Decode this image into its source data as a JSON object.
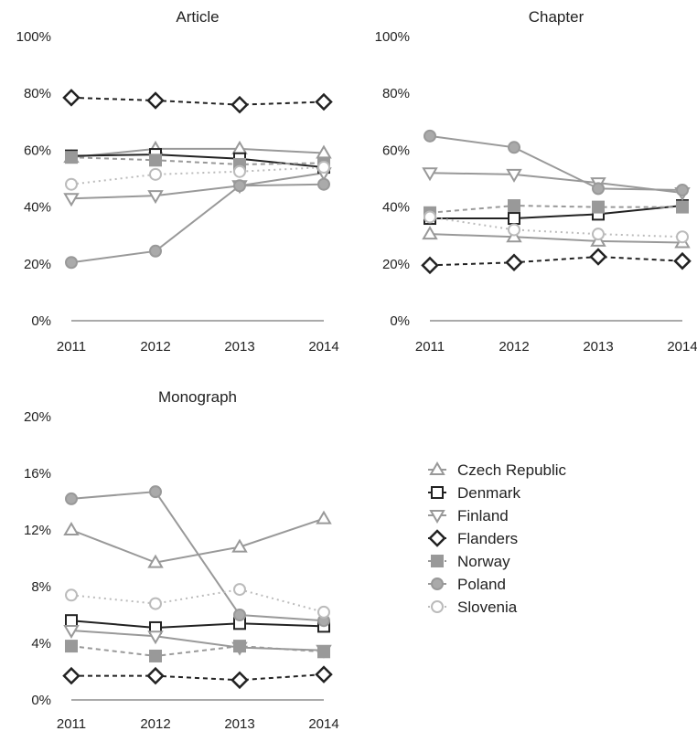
{
  "chart_data": [
    {
      "type": "line",
      "title": "Article",
      "categories": [
        "2011",
        "2012",
        "2013",
        "2014"
      ],
      "ylim": [
        0,
        100
      ],
      "yticks": [
        "0%",
        "20%",
        "40%",
        "60%",
        "80%",
        "100%"
      ],
      "series": [
        {
          "name": "Czech Republic",
          "values": [
            57.5,
            60.5,
            60.5,
            59.0
          ]
        },
        {
          "name": "Denmark",
          "values": [
            58.0,
            58.5,
            57.0,
            54.0
          ]
        },
        {
          "name": "Finland",
          "values": [
            43.0,
            44.0,
            47.5,
            52.0
          ]
        },
        {
          "name": "Flanders",
          "values": [
            78.5,
            77.5,
            76.0,
            77.0
          ]
        },
        {
          "name": "Norway",
          "values": [
            57.5,
            56.5,
            55.0,
            55.5
          ]
        },
        {
          "name": "Poland",
          "values": [
            20.5,
            24.5,
            47.5,
            48.0
          ]
        },
        {
          "name": "Slovenia",
          "values": [
            48.0,
            51.5,
            52.5,
            54.0
          ]
        }
      ]
    },
    {
      "type": "line",
      "title": "Chapter",
      "categories": [
        "2011",
        "2012",
        "2013",
        "2014"
      ],
      "ylim": [
        0,
        100
      ],
      "yticks": [
        "0%",
        "20%",
        "40%",
        "60%",
        "80%",
        "100%"
      ],
      "series": [
        {
          "name": "Czech Republic",
          "values": [
            30.5,
            29.5,
            28.0,
            27.5
          ]
        },
        {
          "name": "Denmark",
          "values": [
            36.0,
            36.0,
            37.5,
            40.5
          ]
        },
        {
          "name": "Finland",
          "values": [
            52.0,
            51.5,
            48.5,
            45.0
          ]
        },
        {
          "name": "Flanders",
          "values": [
            19.5,
            20.5,
            22.5,
            21.0
          ]
        },
        {
          "name": "Norway",
          "values": [
            38.0,
            40.5,
            40.0,
            40.0
          ]
        },
        {
          "name": "Poland",
          "values": [
            65.0,
            61.0,
            46.5,
            46.0
          ]
        },
        {
          "name": "Slovenia",
          "values": [
            36.5,
            32.0,
            30.5,
            29.5
          ]
        }
      ]
    },
    {
      "type": "line",
      "title": "Monograph",
      "categories": [
        "2011",
        "2012",
        "2013",
        "2014"
      ],
      "ylim": [
        0,
        20
      ],
      "yticks": [
        "0%",
        "4%",
        "8%",
        "12%",
        "16%",
        "20%"
      ],
      "series": [
        {
          "name": "Czech Republic",
          "values": [
            12.0,
            9.7,
            10.8,
            12.8
          ]
        },
        {
          "name": "Denmark",
          "values": [
            5.6,
            5.1,
            5.4,
            5.2
          ]
        },
        {
          "name": "Finland",
          "values": [
            4.9,
            4.5,
            3.7,
            3.5
          ]
        },
        {
          "name": "Flanders",
          "values": [
            1.7,
            1.7,
            1.4,
            1.8
          ]
        },
        {
          "name": "Norway",
          "values": [
            3.8,
            3.1,
            3.8,
            3.4
          ]
        },
        {
          "name": "Poland",
          "values": [
            14.2,
            14.7,
            6.0,
            5.6
          ]
        },
        {
          "name": "Slovenia",
          "values": [
            7.4,
            6.8,
            7.8,
            6.2
          ]
        }
      ]
    }
  ],
  "styles": {
    "Czech Republic": {
      "color": "#999999",
      "dash": "",
      "marker": "triangle-up",
      "fill": "#ffffff"
    },
    "Denmark": {
      "color": "#222222",
      "dash": "",
      "marker": "square",
      "fill": "#ffffff"
    },
    "Finland": {
      "color": "#999999",
      "dash": "",
      "marker": "triangle-down",
      "fill": "#ffffff"
    },
    "Flanders": {
      "color": "#222222",
      "dash": "5,4",
      "marker": "diamond",
      "fill": "#ffffff"
    },
    "Norway": {
      "color": "#999999",
      "dash": "5,4",
      "marker": "square",
      "fill": "#999999"
    },
    "Poland": {
      "color": "#999999",
      "dash": "",
      "marker": "circle",
      "fill": "#aaaaaa"
    },
    "Slovenia": {
      "color": "#bbbbbb",
      "dash": "2,4",
      "marker": "circle",
      "fill": "#ffffff"
    }
  },
  "legend": {
    "items": [
      "Czech Republic",
      "Denmark",
      "Finland",
      "Flanders",
      "Norway",
      "Poland",
      "Slovenia"
    ]
  }
}
